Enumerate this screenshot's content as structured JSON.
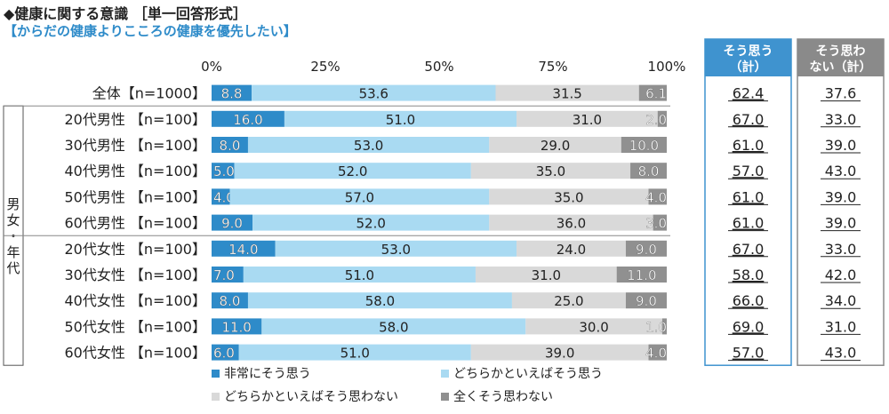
{
  "header": {
    "title": "◆健康に関する意識 ［単一回答形式］",
    "subtitle": "【からだの健康よりこころの健康を優先したい】"
  },
  "group_label": "男女・年代",
  "summary_headers": {
    "agree_line1": "そう思う",
    "agree_line2": "（計）",
    "disagree_line1": "そう思わ",
    "disagree_line2": "ない（計）"
  },
  "colors": {
    "very_agree": "#2e8bc9",
    "somewhat_agree": "#a9daf2",
    "somewhat_disagree": "#d9d9d9",
    "not_at_all": "#909090",
    "agree_header_bg": "#3f93cf",
    "disagree_header_bg": "#8a8a8a"
  },
  "chart_data": {
    "type": "bar",
    "orientation": "horizontal",
    "stacked": true,
    "xlim": [
      0,
      100
    ],
    "x_ticks": [
      "0%",
      "25%",
      "50%",
      "75%",
      "100%"
    ],
    "legend_position": "bottom",
    "categories": [
      "全体【n=1000】",
      "20代男性 【n=100】",
      "30代男性 【n=100】",
      "40代男性 【n=100】",
      "50代男性 【n=100】",
      "60代男性 【n=100】",
      "20代女性 【n=100】",
      "30代女性 【n=100】",
      "40代女性 【n=100】",
      "50代女性 【n=100】",
      "60代女性 【n=100】"
    ],
    "series": [
      {
        "name": "非常にそう思う",
        "values": [
          8.8,
          16.0,
          8.0,
          5.0,
          4.0,
          9.0,
          14.0,
          7.0,
          8.0,
          11.0,
          6.0
        ]
      },
      {
        "name": "どちらかといえばそう思う",
        "values": [
          53.6,
          51.0,
          53.0,
          52.0,
          57.0,
          52.0,
          53.0,
          51.0,
          58.0,
          58.0,
          51.0
        ]
      },
      {
        "name": "どちらかといえばそう思わない",
        "values": [
          31.5,
          31.0,
          29.0,
          35.0,
          35.0,
          36.0,
          24.0,
          31.0,
          25.0,
          30.0,
          39.0
        ]
      },
      {
        "name": "全くそう思わない",
        "values": [
          6.1,
          2.0,
          10.0,
          8.0,
          4.0,
          3.0,
          9.0,
          11.0,
          9.0,
          1.0,
          4.0
        ]
      }
    ],
    "agree_total": [
      "62.4",
      "67.0",
      "61.0",
      "57.0",
      "61.0",
      "61.0",
      "67.0",
      "58.0",
      "66.0",
      "69.0",
      "57.0"
    ],
    "disagree_total": [
      "37.6",
      "33.0",
      "39.0",
      "43.0",
      "39.0",
      "39.0",
      "33.0",
      "42.0",
      "34.0",
      "31.0",
      "43.0"
    ]
  }
}
